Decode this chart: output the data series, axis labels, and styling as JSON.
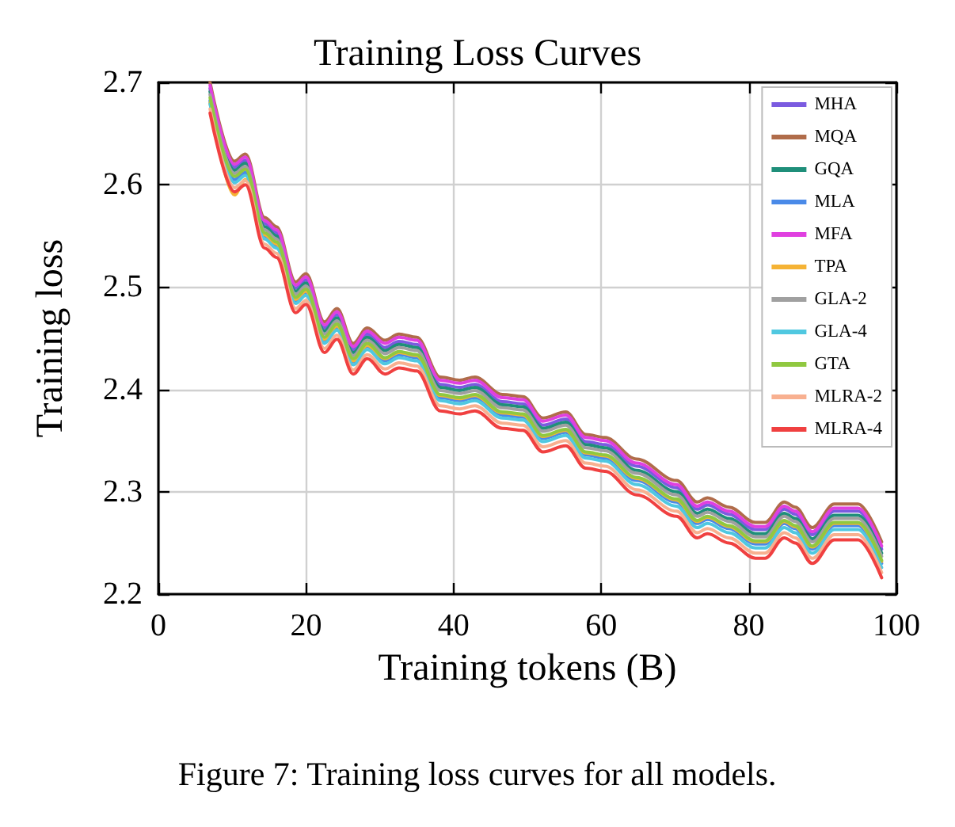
{
  "chart_data": {
    "type": "line",
    "title": "Training Loss Curves",
    "xlabel": "Training tokens (B)",
    "ylabel": "Training loss",
    "annotations": [
      "Figure 7: Training loss curves for all models."
    ],
    "x": [
      7,
      10.3,
      11.8,
      14.4,
      16,
      18.6,
      20,
      22.5,
      24.2,
      26.4,
      28.3,
      30.7,
      32.6,
      35,
      38.2,
      40.8,
      42.9,
      46.6,
      49.4,
      52.1,
      55.2,
      57.9,
      60.5,
      64.8,
      70.2,
      73,
      74.4,
      77.3,
      80.9,
      82.2,
      84.8,
      86.3,
      88.6,
      91.6,
      94.8,
      98
    ],
    "xlim": [
      0,
      100
    ],
    "xticks": [
      0,
      20,
      40,
      60,
      80,
      100
    ],
    "ylim": [
      2.2,
      2.7
    ],
    "yticks": [
      2.2,
      2.3,
      2.4,
      2.5,
      2.6,
      2.7
    ],
    "grid": true,
    "legend": "top right",
    "line_style": "solid",
    "series": [
      {
        "name": "MHA",
        "color": "#7b5be0",
        "values": [
          2.694,
          2.617,
          2.624,
          2.562,
          2.553,
          2.499,
          2.507,
          2.46,
          2.473,
          2.439,
          2.454,
          2.441,
          2.447,
          2.444,
          2.405,
          2.402,
          2.405,
          2.388,
          2.386,
          2.365,
          2.371,
          2.349,
          2.346,
          2.325,
          2.304,
          2.283,
          2.287,
          2.278,
          2.263,
          2.263,
          2.283,
          2.278,
          2.258,
          2.281,
          2.281,
          2.244
        ]
      },
      {
        "name": "MQA",
        "color": "#b06c4a",
        "values": [
          2.7,
          2.623,
          2.63,
          2.568,
          2.559,
          2.505,
          2.513,
          2.466,
          2.479,
          2.445,
          2.46,
          2.448,
          2.454,
          2.451,
          2.412,
          2.409,
          2.412,
          2.395,
          2.393,
          2.372,
          2.378,
          2.356,
          2.353,
          2.332,
          2.311,
          2.29,
          2.294,
          2.285,
          2.27,
          2.27,
          2.29,
          2.285,
          2.265,
          2.288,
          2.288,
          2.251
        ]
      },
      {
        "name": "GQA",
        "color": "#1f8f7a",
        "values": [
          2.691,
          2.614,
          2.621,
          2.559,
          2.55,
          2.496,
          2.504,
          2.457,
          2.47,
          2.436,
          2.451,
          2.438,
          2.444,
          2.441,
          2.402,
          2.399,
          2.402,
          2.385,
          2.383,
          2.362,
          2.368,
          2.346,
          2.343,
          2.321,
          2.3,
          2.279,
          2.283,
          2.274,
          2.259,
          2.259,
          2.279,
          2.274,
          2.254,
          2.277,
          2.277,
          2.24
        ]
      },
      {
        "name": "MLA",
        "color": "#4a8ae8",
        "values": [
          2.682,
          2.605,
          2.612,
          2.55,
          2.541,
          2.487,
          2.495,
          2.448,
          2.461,
          2.427,
          2.442,
          2.428,
          2.434,
          2.431,
          2.392,
          2.389,
          2.392,
          2.375,
          2.373,
          2.352,
          2.358,
          2.336,
          2.333,
          2.311,
          2.29,
          2.269,
          2.273,
          2.264,
          2.249,
          2.249,
          2.269,
          2.264,
          2.244,
          2.267,
          2.267,
          2.23
        ]
      },
      {
        "name": "MFA",
        "color": "#e040e0",
        "values": [
          2.697,
          2.62,
          2.627,
          2.565,
          2.556,
          2.502,
          2.51,
          2.463,
          2.476,
          2.442,
          2.457,
          2.445,
          2.451,
          2.448,
          2.409,
          2.406,
          2.409,
          2.392,
          2.39,
          2.369,
          2.375,
          2.353,
          2.35,
          2.328,
          2.307,
          2.286,
          2.29,
          2.281,
          2.266,
          2.266,
          2.286,
          2.281,
          2.261,
          2.284,
          2.284,
          2.247
        ]
      },
      {
        "name": "TPA",
        "color": "#f5b335",
        "values": [
          2.68,
          2.59,
          2.605,
          2.551,
          2.542,
          2.488,
          2.496,
          2.449,
          2.462,
          2.428,
          2.443,
          2.43,
          2.436,
          2.433,
          2.394,
          2.391,
          2.394,
          2.377,
          2.375,
          2.354,
          2.36,
          2.338,
          2.335,
          2.313,
          2.292,
          2.271,
          2.275,
          2.266,
          2.251,
          2.251,
          2.271,
          2.266,
          2.246,
          2.269,
          2.269,
          2.232
        ]
      },
      {
        "name": "GLA-2",
        "color": "#a0a0a0",
        "values": [
          2.688,
          2.611,
          2.618,
          2.556,
          2.547,
          2.493,
          2.501,
          2.454,
          2.467,
          2.433,
          2.448,
          2.435,
          2.441,
          2.438,
          2.399,
          2.396,
          2.399,
          2.382,
          2.38,
          2.359,
          2.365,
          2.343,
          2.34,
          2.318,
          2.297,
          2.276,
          2.28,
          2.271,
          2.256,
          2.256,
          2.276,
          2.271,
          2.251,
          2.274,
          2.274,
          2.237
        ]
      },
      {
        "name": "GLA-4",
        "color": "#50c8e0",
        "values": [
          2.679,
          2.602,
          2.609,
          2.547,
          2.538,
          2.484,
          2.492,
          2.445,
          2.458,
          2.424,
          2.439,
          2.425,
          2.431,
          2.428,
          2.389,
          2.386,
          2.389,
          2.372,
          2.37,
          2.349,
          2.355,
          2.333,
          2.33,
          2.307,
          2.286,
          2.265,
          2.269,
          2.26,
          2.245,
          2.245,
          2.265,
          2.26,
          2.24,
          2.263,
          2.263,
          2.226
        ]
      },
      {
        "name": "GTA",
        "color": "#90c840",
        "values": [
          2.685,
          2.608,
          2.615,
          2.553,
          2.544,
          2.49,
          2.498,
          2.451,
          2.464,
          2.43,
          2.445,
          2.431,
          2.437,
          2.434,
          2.395,
          2.392,
          2.395,
          2.378,
          2.376,
          2.355,
          2.361,
          2.339,
          2.336,
          2.314,
          2.293,
          2.272,
          2.276,
          2.267,
          2.252,
          2.252,
          2.272,
          2.267,
          2.247,
          2.27,
          2.27,
          2.233
        ]
      },
      {
        "name": "MLRA-2",
        "color": "#f8b090",
        "values": [
          2.674,
          2.597,
          2.604,
          2.542,
          2.533,
          2.479,
          2.487,
          2.44,
          2.453,
          2.419,
          2.434,
          2.42,
          2.426,
          2.423,
          2.384,
          2.381,
          2.384,
          2.367,
          2.365,
          2.344,
          2.35,
          2.328,
          2.325,
          2.302,
          2.281,
          2.26,
          2.264,
          2.255,
          2.24,
          2.24,
          2.26,
          2.255,
          2.235,
          2.258,
          2.258,
          2.221
        ]
      },
      {
        "name": "MLRA-4",
        "color": "#f04040",
        "values": [
          2.67,
          2.593,
          2.6,
          2.538,
          2.529,
          2.475,
          2.483,
          2.436,
          2.449,
          2.415,
          2.43,
          2.415,
          2.421,
          2.418,
          2.379,
          2.376,
          2.379,
          2.362,
          2.36,
          2.339,
          2.345,
          2.323,
          2.32,
          2.297,
          2.276,
          2.255,
          2.259,
          2.25,
          2.235,
          2.235,
          2.255,
          2.25,
          2.23,
          2.253,
          2.253,
          2.216
        ]
      }
    ]
  }
}
